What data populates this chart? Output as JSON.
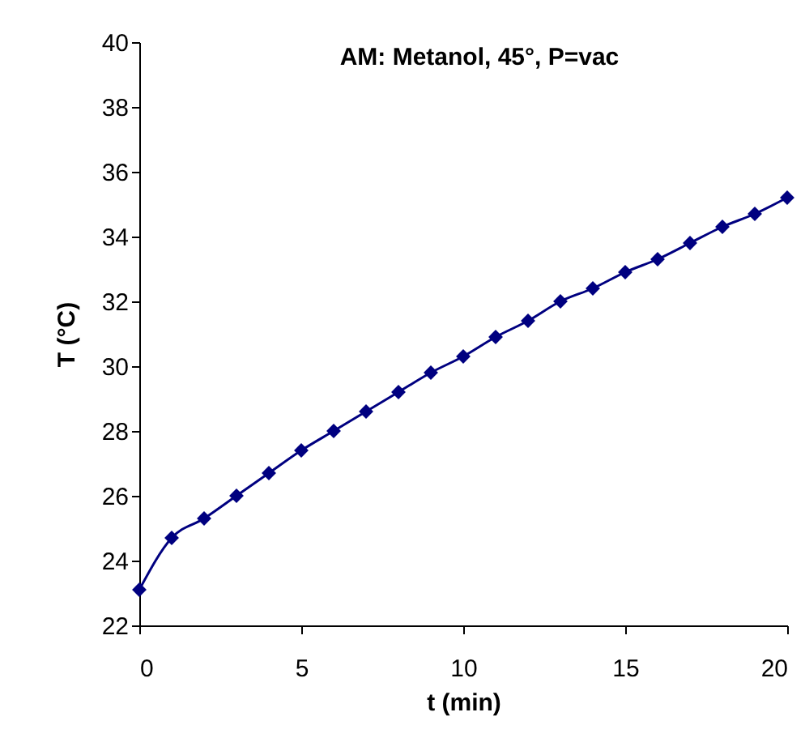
{
  "chart_data": {
    "type": "line",
    "title": "AM: Metanol, 45°, P=vac",
    "xlabel": "t (min)",
    "ylabel": "T (°C)",
    "x": [
      0,
      1,
      2,
      3,
      4,
      5,
      6,
      7,
      8,
      9,
      10,
      11,
      12,
      13,
      14,
      15,
      16,
      17,
      18,
      19,
      20
    ],
    "series": [
      {
        "color": "#000080",
        "values": [
          23.1,
          24.7,
          25.3,
          26.0,
          26.7,
          27.4,
          28.0,
          28.6,
          29.2,
          29.8,
          30.3,
          30.9,
          31.4,
          32.0,
          32.4,
          32.9,
          33.3,
          33.8,
          34.3,
          34.7,
          35.2
        ]
      }
    ],
    "xlim": [
      0,
      20
    ],
    "xticks": [
      0,
      5,
      10,
      15,
      20
    ],
    "ylim": [
      22,
      40
    ],
    "yticks": [
      22,
      24,
      26,
      28,
      30,
      32,
      34,
      36,
      38,
      40
    ],
    "grid": false,
    "legend": false,
    "marker": "diamond",
    "line_style": "solid"
  }
}
